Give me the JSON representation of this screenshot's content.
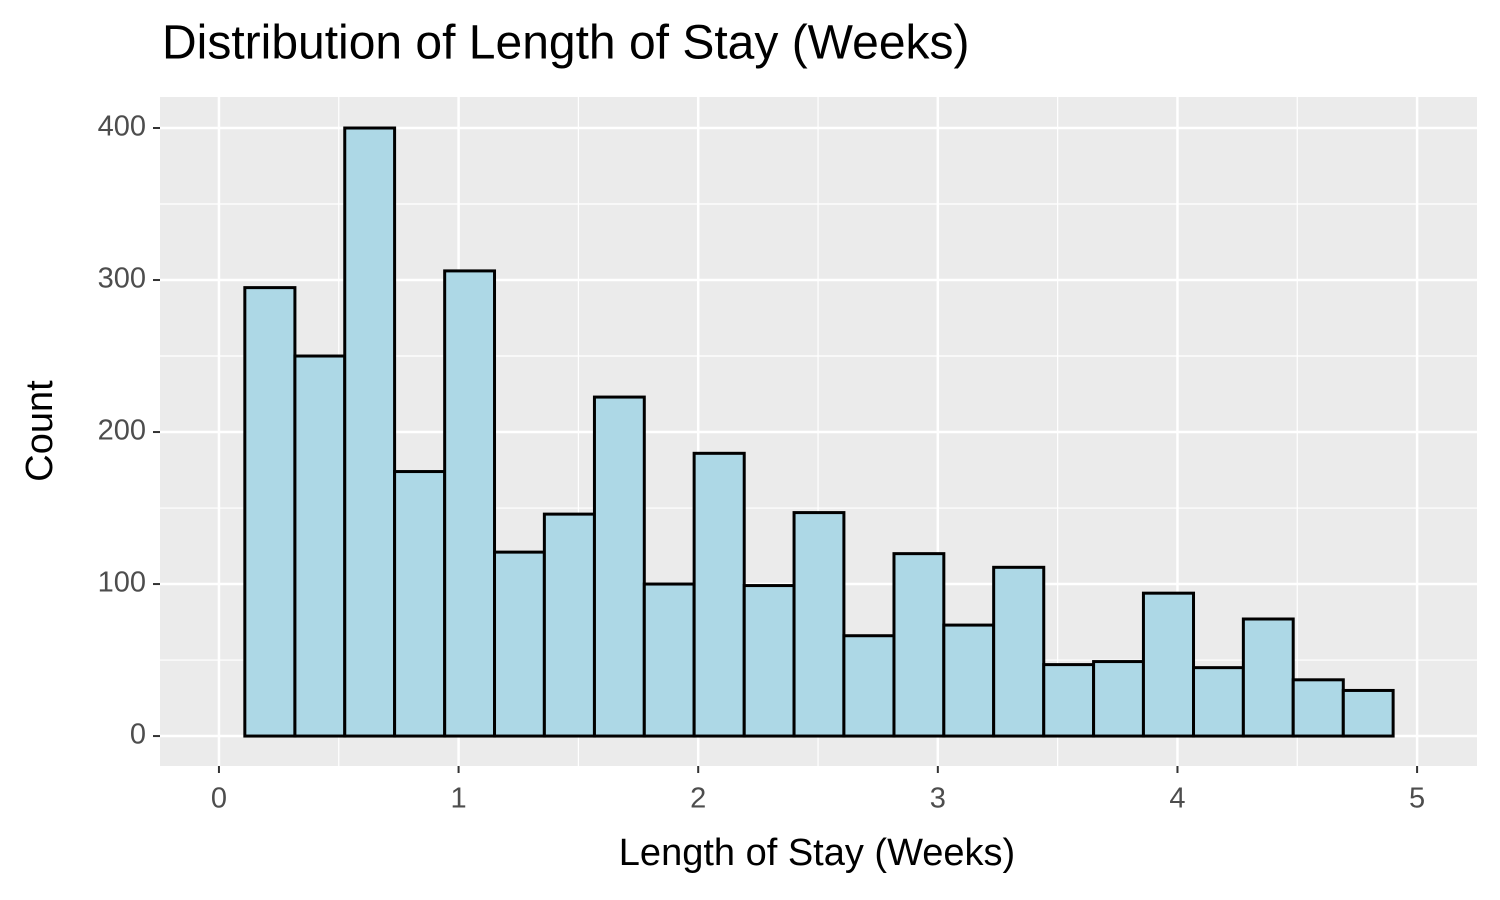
{
  "chart_data": {
    "type": "histogram",
    "title": "Distribution of Length of Stay (Weeks)",
    "x_label": "Length of Stay (Weeks)",
    "y_label": "Count",
    "bins": [
      0.108,
      0.317,
      0.525,
      0.733,
      0.942,
      1.15,
      1.358,
      1.567,
      1.775,
      1.983,
      2.192,
      2.4,
      2.608,
      2.817,
      3.025,
      3.233,
      3.442,
      3.65,
      3.858,
      4.067,
      4.275,
      4.483,
      4.692,
      4.9
    ],
    "values": [
      295,
      250,
      400,
      174,
      306,
      121,
      146,
      223,
      100,
      186,
      99,
      147,
      66,
      120,
      73,
      111,
      47,
      49,
      94,
      45,
      77,
      37,
      30
    ],
    "color": "#add8e6",
    "edge_color": "#000000",
    "xlim": [
      -0.246,
      5.25
    ],
    "ylim": [
      -19.7,
      420.4
    ],
    "xticks": [
      0,
      1,
      2,
      3,
      4,
      5
    ],
    "yticks": [
      0,
      100,
      200,
      300,
      400
    ],
    "grid": true
  }
}
